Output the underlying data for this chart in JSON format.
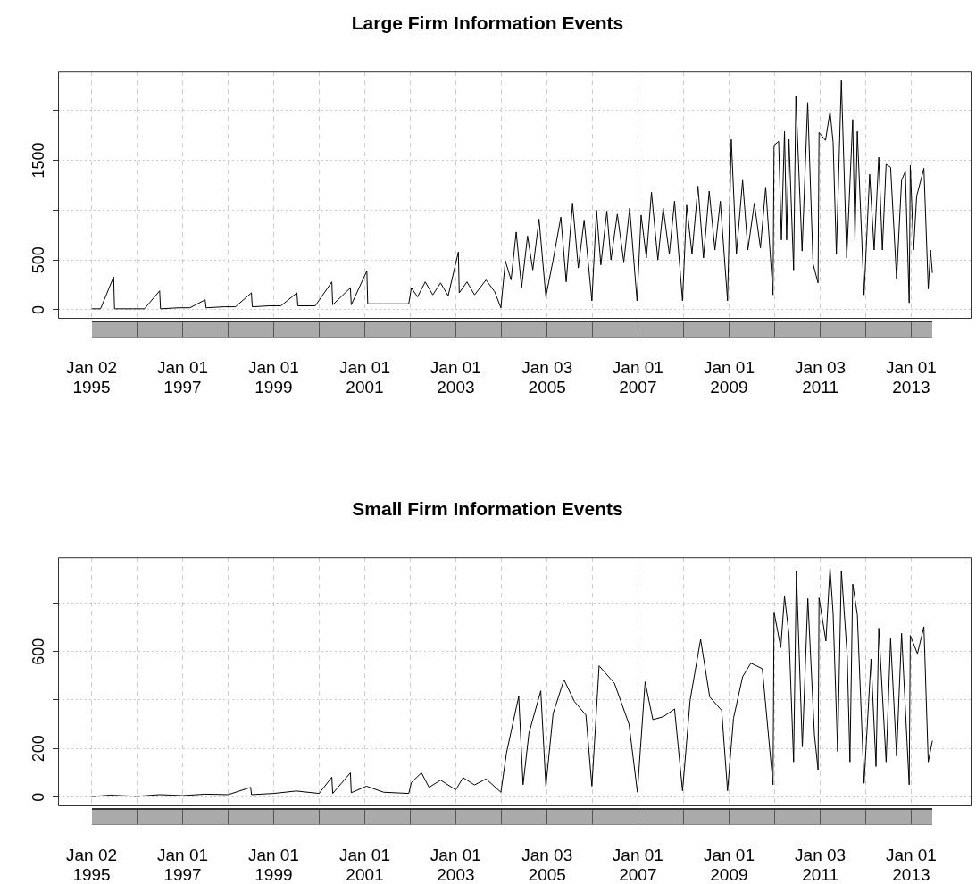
{
  "chart_data": [
    {
      "type": "line",
      "title": "Large Firm Information Events",
      "color": "#000000",
      "grid": true,
      "xlim": [
        "1994-04-08",
        "2014-04-30"
      ],
      "ylim": [
        -90,
        2390
      ],
      "xticks": [
        {
          "value": "1995-01-02",
          "label": "Jan 02\n1995"
        },
        {
          "value": "1996-01-01",
          "label": null
        },
        {
          "value": "1997-01-01",
          "label": "Jan 01\n1997"
        },
        {
          "value": "1998-01-01",
          "label": null
        },
        {
          "value": "1999-01-01",
          "label": "Jan 01\n1999"
        },
        {
          "value": "2000-01-01",
          "label": null
        },
        {
          "value": "2001-01-01",
          "label": "Jan 01\n2001"
        },
        {
          "value": "2002-01-01",
          "label": null
        },
        {
          "value": "2003-01-01",
          "label": "Jan 01\n2003"
        },
        {
          "value": "2004-01-01",
          "label": null
        },
        {
          "value": "2005-01-03",
          "label": "Jan 03\n2005"
        },
        {
          "value": "2006-01-01",
          "label": null
        },
        {
          "value": "2007-01-01",
          "label": "Jan 01\n2007"
        },
        {
          "value": "2008-01-01",
          "label": null
        },
        {
          "value": "2009-01-01",
          "label": "Jan 01\n2009"
        },
        {
          "value": "2010-01-01",
          "label": null
        },
        {
          "value": "2011-01-03",
          "label": "Jan 03\n2011"
        },
        {
          "value": "2012-01-01",
          "label": null
        },
        {
          "value": "2013-01-01",
          "label": "Jan 01\n2013"
        }
      ],
      "yticks": [
        0,
        500,
        {
          "value": 1000,
          "label": null
        },
        1500,
        {
          "value": 2000,
          "label": null
        }
      ],
      "x": [
        "1995-01-02",
        "1995-03-15",
        "1995-06-28",
        "1995-07-05",
        "1995-12-01",
        "1996-03-01",
        "1996-07-01",
        "1996-07-08",
        "1996-12-01",
        "1997-03-01",
        "1997-07-01",
        "1997-07-08",
        "1997-12-01",
        "1998-03-01",
        "1998-07-07",
        "1998-07-14",
        "1998-12-01",
        "1999-03-01",
        "1999-07-07",
        "1999-07-14",
        "1999-12-01",
        "2000-04-12",
        "2000-04-19",
        "2000-09-08",
        "2000-09-15",
        "2001-01-18",
        "2001-01-25",
        "2001-06-01",
        "2001-12-20",
        "2002-01-10",
        "2002-03-01",
        "2002-05-01",
        "2002-07-01",
        "2002-09-01",
        "2002-11-01",
        "2003-01-22",
        "2003-01-29",
        "2003-04-01",
        "2003-06-01",
        "2003-09-01",
        "2003-11-10",
        "2003-12-29",
        "2004-02-03",
        "2004-03-20",
        "2004-04-30",
        "2004-06-12",
        "2004-07-30",
        "2004-09-10",
        "2004-10-30",
        "2004-12-24",
        "2005-02-20",
        "2005-04-23",
        "2005-06-05",
        "2005-07-26",
        "2005-09-10",
        "2005-10-27",
        "2005-12-28",
        "2006-02-03",
        "2006-03-10",
        "2006-04-27",
        "2006-05-30",
        "2006-07-20",
        "2006-09-10",
        "2006-10-27",
        "2006-12-25",
        "2007-01-27",
        "2007-03-10",
        "2007-04-20",
        "2007-06-10",
        "2007-07-23",
        "2007-09-10",
        "2007-10-22",
        "2007-12-25",
        "2008-01-27",
        "2008-03-10",
        "2008-04-27",
        "2008-06-10",
        "2008-07-26",
        "2008-09-10",
        "2008-10-23",
        "2008-12-20",
        "2009-01-19",
        "2009-03-01",
        "2009-04-20",
        "2009-06-01",
        "2009-07-23",
        "2009-09-10",
        "2009-10-22",
        "2009-12-20",
        "2009-12-28",
        "2010-02-03",
        "2010-02-25",
        "2010-03-22",
        "2010-04-08",
        "2010-04-27",
        "2010-06-03",
        "2010-06-21",
        "2010-08-10",
        "2010-09-24",
        "2010-11-06",
        "2010-12-16",
        "2010-12-24",
        "2011-02-14",
        "2011-03-22",
        "2011-04-16",
        "2011-05-12",
        "2011-06-21",
        "2011-08-03",
        "2011-09-20",
        "2011-10-08",
        "2011-10-27",
        "2011-12-20",
        "2012-02-03",
        "2012-03-10",
        "2012-04-16",
        "2012-05-15",
        "2012-06-14",
        "2012-07-20",
        "2012-09-06",
        "2012-10-16",
        "2012-11-15",
        "2012-12-16",
        "2012-12-25",
        "2013-01-20",
        "2013-02-14",
        "2013-04-13",
        "2013-05-18",
        "2013-06-05",
        "2013-06-20"
      ],
      "values": [
        10,
        10,
        330,
        10,
        10,
        10,
        190,
        10,
        20,
        20,
        100,
        20,
        30,
        30,
        170,
        30,
        40,
        40,
        170,
        40,
        40,
        280,
        50,
        220,
        50,
        390,
        60,
        60,
        60,
        220,
        130,
        280,
        150,
        270,
        140,
        580,
        170,
        280,
        150,
        300,
        180,
        20,
        490,
        300,
        780,
        220,
        740,
        400,
        910,
        130,
        500,
        930,
        280,
        1070,
        420,
        900,
        90,
        1000,
        450,
        990,
        500,
        960,
        480,
        1020,
        90,
        950,
        520,
        1180,
        500,
        1020,
        560,
        1090,
        90,
        1050,
        560,
        1240,
        520,
        1190,
        600,
        1090,
        90,
        1710,
        560,
        1300,
        600,
        1070,
        620,
        1230,
        150,
        1650,
        1690,
        700,
        1790,
        700,
        1710,
        400,
        2140,
        590,
        2080,
        460,
        270,
        1780,
        1700,
        1990,
        1680,
        560,
        2300,
        520,
        1910,
        700,
        1790,
        150,
        1360,
        600,
        1530,
        600,
        1460,
        1430,
        310,
        1300,
        1390,
        70,
        1450,
        600,
        1140,
        1420,
        210,
        600,
        370
      ]
    },
    {
      "type": "line",
      "title": "Small Firm Information Events",
      "color": "#000000",
      "grid": true,
      "xlim": [
        "1994-04-08",
        "2014-04-30"
      ],
      "ylim": [
        -38,
        988
      ],
      "xticks": [
        {
          "value": "1995-01-02",
          "label": "Jan 02\n1995"
        },
        {
          "value": "1996-01-01",
          "label": null
        },
        {
          "value": "1997-01-01",
          "label": "Jan 01\n1997"
        },
        {
          "value": "1998-01-01",
          "label": null
        },
        {
          "value": "1999-01-01",
          "label": "Jan 01\n1999"
        },
        {
          "value": "2000-01-01",
          "label": null
        },
        {
          "value": "2001-01-01",
          "label": "Jan 01\n2001"
        },
        {
          "value": "2002-01-01",
          "label": null
        },
        {
          "value": "2003-01-01",
          "label": "Jan 01\n2003"
        },
        {
          "value": "2004-01-01",
          "label": null
        },
        {
          "value": "2005-01-03",
          "label": "Jan 03\n2005"
        },
        {
          "value": "2006-01-01",
          "label": null
        },
        {
          "value": "2007-01-01",
          "label": "Jan 01\n2007"
        },
        {
          "value": "2008-01-01",
          "label": null
        },
        {
          "value": "2009-01-01",
          "label": "Jan 01\n2009"
        },
        {
          "value": "2010-01-01",
          "label": null
        },
        {
          "value": "2011-01-03",
          "label": "Jan 03\n2011"
        },
        {
          "value": "2012-01-01",
          "label": null
        },
        {
          "value": "2013-01-01",
          "label": "Jan 01\n2013"
        }
      ],
      "yticks": [
        0,
        200,
        {
          "value": 400,
          "label": null
        },
        600,
        {
          "value": 800,
          "label": null
        }
      ],
      "x": [
        "1995-01-02",
        "1995-06-01",
        "1996-01-01",
        "1996-07-01",
        "1997-01-01",
        "1997-07-01",
        "1998-01-01",
        "1998-07-01",
        "1998-07-08",
        "1999-01-01",
        "1999-07-01",
        "2000-01-01",
        "2000-04-12",
        "2000-04-19",
        "2000-09-08",
        "2000-09-15",
        "2001-01-15",
        "2001-06-01",
        "2001-12-20",
        "2002-01-10",
        "2002-04-01",
        "2002-06-01",
        "2002-09-01",
        "2003-01-01",
        "2003-03-01",
        "2003-06-01",
        "2003-09-01",
        "2003-12-29",
        "2004-02-12",
        "2004-05-20",
        "2004-06-24",
        "2004-08-10",
        "2004-11-13",
        "2004-12-24",
        "2005-02-20",
        "2005-05-18",
        "2005-08-10",
        "2005-11-10",
        "2005-12-28",
        "2006-02-24",
        "2006-06-27",
        "2006-10-22",
        "2006-12-28",
        "2007-02-28",
        "2007-05-01",
        "2007-07-23",
        "2007-10-22",
        "2007-12-25",
        "2008-02-24",
        "2008-05-18",
        "2008-07-30",
        "2008-11-03",
        "2008-12-20",
        "2009-02-06",
        "2009-04-20",
        "2009-06-25",
        "2009-09-25",
        "2009-12-20",
        "2009-12-28",
        "2010-02-20",
        "2010-03-22",
        "2010-04-27",
        "2010-06-03",
        "2010-06-25",
        "2010-08-12",
        "2010-09-25",
        "2010-11-17",
        "2010-12-16",
        "2010-12-24",
        "2011-02-17",
        "2011-03-22",
        "2011-04-16",
        "2011-05-22",
        "2011-06-21",
        "2011-08-07",
        "2011-08-29",
        "2011-09-20",
        "2011-10-27",
        "2011-12-20",
        "2012-02-14",
        "2012-03-25",
        "2012-04-16",
        "2012-06-14",
        "2012-07-20",
        "2012-09-06",
        "2012-10-16",
        "2012-12-16",
        "2012-12-25",
        "2013-02-20",
        "2013-04-13",
        "2013-05-18",
        "2013-06-20"
      ],
      "values": [
        2,
        8,
        3,
        10,
        6,
        12,
        10,
        40,
        10,
        15,
        25,
        15,
        82,
        15,
        100,
        18,
        45,
        20,
        15,
        60,
        100,
        40,
        70,
        30,
        80,
        50,
        75,
        20,
        182,
        415,
        51,
        263,
        438,
        45,
        344,
        484,
        394,
        338,
        45,
        541,
        469,
        300,
        20,
        475,
        319,
        331,
        363,
        26,
        400,
        650,
        413,
        357,
        26,
        325,
        496,
        552,
        529,
        51,
        762,
        616,
        827,
        669,
        145,
        933,
        207,
        818,
        257,
        113,
        821,
        643,
        946,
        756,
        188,
        933,
        581,
        145,
        878,
        752,
        57,
        569,
        126,
        696,
        145,
        653,
        169,
        675,
        51,
        666,
        591,
        702,
        145,
        232
      ]
    }
  ]
}
